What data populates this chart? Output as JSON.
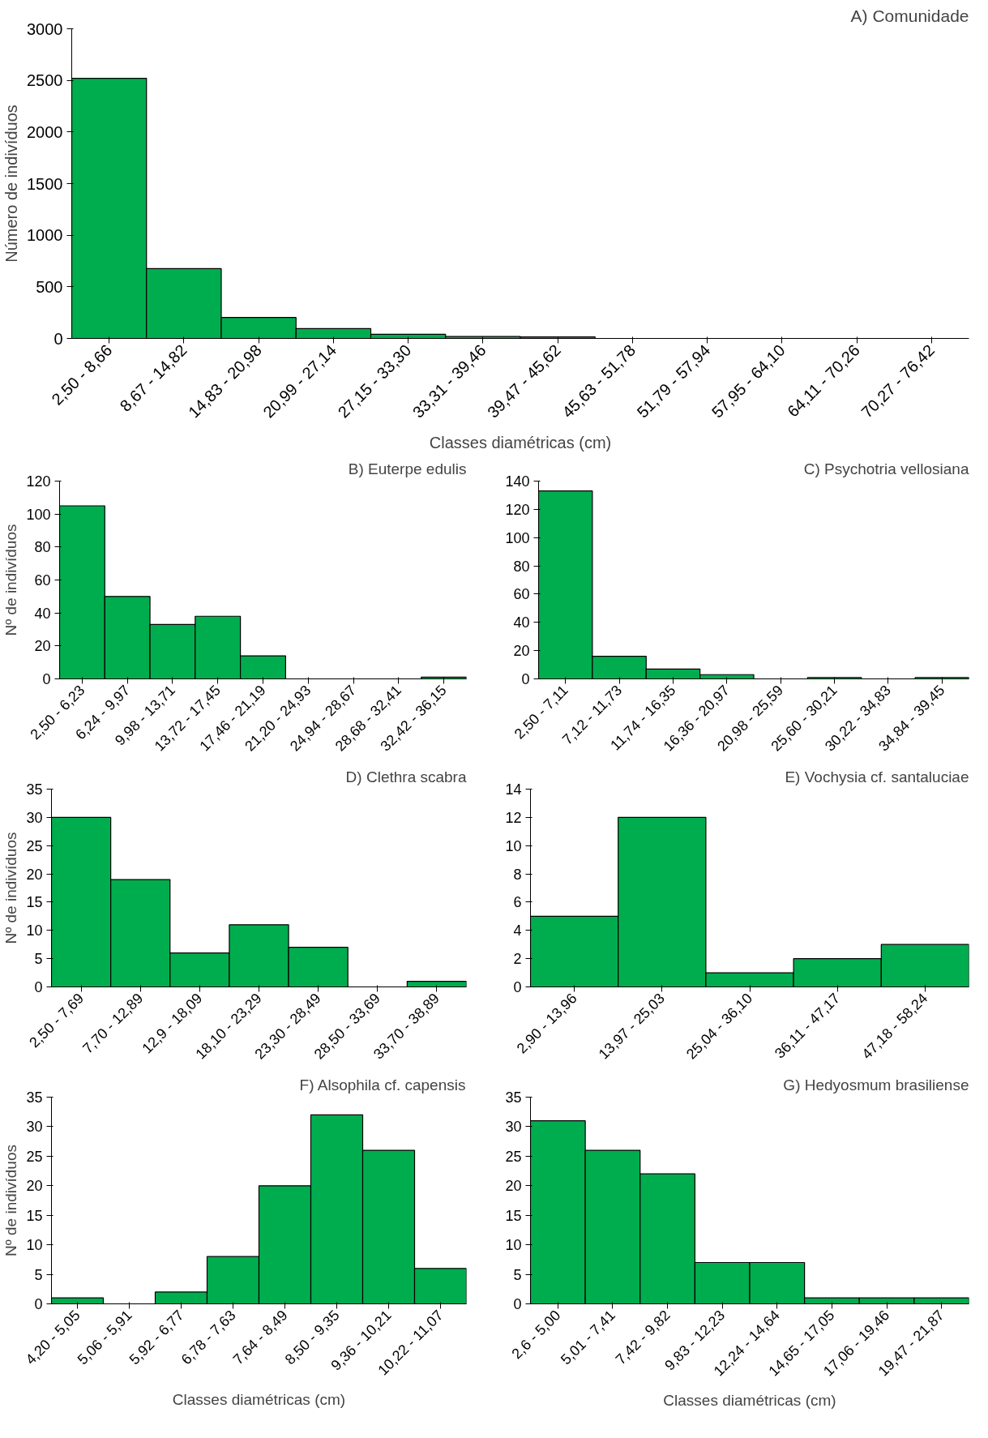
{
  "chart_data": [
    {
      "type": "bar",
      "title": "A) Comunidade",
      "xlabel": "Classes diamétricas (cm)",
      "ylabel": "Número de indivíduos",
      "categories": [
        "2,50 - 8,66",
        "8,67 - 14,82",
        "14,83 - 20,98",
        "20,99 - 27,14",
        "27,15 - 33,30",
        "33,31 - 39,46",
        "39,47 - 45,62",
        "45,63 - 51,78",
        "51,79 - 57,94",
        "57,95 - 64,10",
        "64,11 - 70,26",
        "70,27 - 76,42"
      ],
      "values": [
        2520,
        676,
        203,
        95,
        40,
        18,
        14,
        null,
        null,
        null,
        null,
        null
      ],
      "color": "#00ad4e",
      "ylim": [
        0,
        3000
      ],
      "yticks": [
        0,
        500,
        1000,
        1500,
        2000,
        2500,
        3000
      ]
    },
    {
      "type": "bar",
      "title": "B) Euterpe edulis",
      "ylabel": "Nº de indivíduos",
      "categories": [
        "2,50 - 6,23",
        "6,24 - 9,97",
        "9,98 - 13,71",
        "13,72 - 17,45",
        "17,46 - 21,19",
        "21,20 - 24,93",
        "24,94 - 28,67",
        "28,68 - 32,41",
        "32,42 - 36,15"
      ],
      "values": [
        105,
        50,
        33,
        38,
        14,
        0,
        0,
        0,
        1
      ],
      "color": "#00ad4e",
      "ylim": [
        0,
        120
      ],
      "yticks": [
        0,
        20,
        40,
        60,
        80,
        100,
        120
      ]
    },
    {
      "type": "bar",
      "title": "C) Psychotria vellosiana",
      "categories": [
        "2,50 - 7,11",
        "7,12 - 11,73",
        "11,74 - 16,35",
        "16,36 - 20,97",
        "20,98 - 25,59",
        "25,60 - 30,21",
        "30,22 - 34,83",
        "34,84 - 39,45"
      ],
      "values": [
        133,
        16,
        7,
        3,
        0,
        1,
        0,
        1
      ],
      "color": "#00ad4e",
      "ylim": [
        0,
        140
      ],
      "yticks": [
        0,
        20,
        40,
        60,
        80,
        100,
        120,
        140
      ]
    },
    {
      "type": "bar",
      "title": "D) Clethra scabra",
      "ylabel": "Nº de indivíduos",
      "categories": [
        "2,50 - 7,69",
        "7,70 - 12,89",
        "12,9 - 18,09",
        "18,10 - 23,29",
        "23,30 - 28,49",
        "28,50 - 33,69",
        "33,70 - 38,89"
      ],
      "values": [
        30,
        19,
        6,
        11,
        7,
        0,
        1
      ],
      "color": "#00ad4e",
      "ylim": [
        0,
        35
      ],
      "yticks": [
        0,
        5,
        10,
        15,
        20,
        25,
        30,
        35
      ]
    },
    {
      "type": "bar",
      "title": "E) Vochysia cf. santaluciae",
      "categories": [
        "2,90 - 13,96",
        "13,97 - 25,03",
        "25,04 - 36,10",
        "36,11 - 47,17",
        "47,18 - 58,24"
      ],
      "values": [
        5,
        12,
        1,
        2,
        3
      ],
      "color": "#00ad4e",
      "ylim": [
        0,
        14
      ],
      "yticks": [
        0,
        2,
        4,
        6,
        8,
        10,
        12,
        14
      ]
    },
    {
      "type": "bar",
      "title": "F) Alsophila cf. capensis",
      "xlabel": "Classes diamétricas (cm)",
      "ylabel": "Nº de indivíduos",
      "categories": [
        "4,20 - 5,05",
        "5,06 - 5,91",
        "5,92 - 6,77",
        "6,78 - 7,63",
        "7,64 - 8,49",
        "8,50 - 9,35",
        "9,36 - 10,21",
        "10,22 - 11,07"
      ],
      "values": [
        1,
        0,
        2,
        8,
        20,
        32,
        26,
        6
      ],
      "color": "#00ad4e",
      "ylim": [
        0,
        35
      ],
      "yticks": [
        0,
        5,
        10,
        15,
        20,
        25,
        30,
        35
      ]
    },
    {
      "type": "bar",
      "title": "G) Hedyosmum brasiliense",
      "xlabel": "Classes diamétricas (cm)",
      "categories": [
        "2,6 - 5,00",
        "5,01 - 7,41",
        "7,42 - 9,82",
        "9,83 - 12,23",
        "12,24 - 14,64",
        "14,65 - 17,05",
        "17,06 - 19,46",
        "19,47 - 21,87"
      ],
      "values": [
        31,
        26,
        22,
        7,
        7,
        1,
        1,
        1
      ],
      "color": "#00ad4e",
      "ylim": [
        0,
        35
      ],
      "yticks": [
        0,
        5,
        10,
        15,
        20,
        25,
        30,
        35
      ]
    }
  ]
}
